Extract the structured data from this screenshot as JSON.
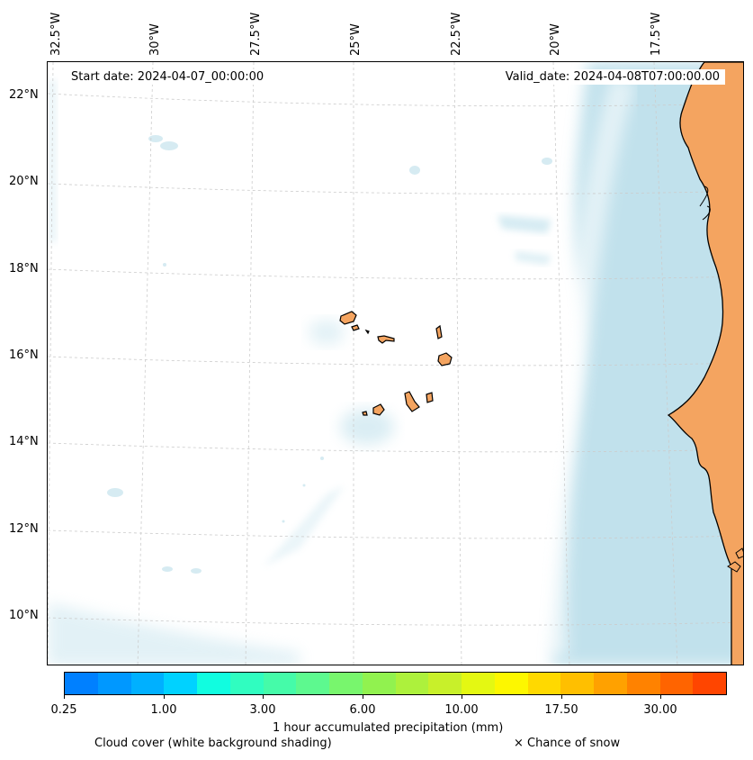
{
  "lon_labels": [
    "32.5°W",
    "30°W",
    "27.5°W",
    "25°W",
    "22.5°W",
    "20°W",
    "17.5°W"
  ],
  "lat_labels": [
    "22°N",
    "20°N",
    "18°N",
    "16°N",
    "14°N",
    "12°N",
    "10°N"
  ],
  "start_date": "Start date: 2024-04-07_00:00:00",
  "valid_date": "Valid_date: 2024-04-08T07:00:00.00",
  "colorbar": {
    "colors": [
      "#0080ff",
      "#0098ff",
      "#00b0ff",
      "#00d2ff",
      "#11fde0",
      "#30fdc0",
      "#45fba9",
      "#5df98f",
      "#78f66d",
      "#91f24f",
      "#adf13c",
      "#c8f02a",
      "#e4f812",
      "#fdf700",
      "#ffd900",
      "#ffbf00",
      "#ffa100",
      "#ff8200",
      "#ff6400",
      "#ff4500"
    ],
    "tick_labels": [
      "0.25",
      "1.00",
      "3.00",
      "6.00",
      "10.00",
      "17.50",
      "30.00"
    ],
    "label": "1 hour accumulated precipitation (mm)"
  },
  "legend": {
    "cloud_cover": "Cloud cover (white background shading)",
    "snow": "× Chance of snow"
  },
  "colors": {
    "land": "#f4a460",
    "cloud": "#add8e6",
    "grid": "#cccccc"
  }
}
